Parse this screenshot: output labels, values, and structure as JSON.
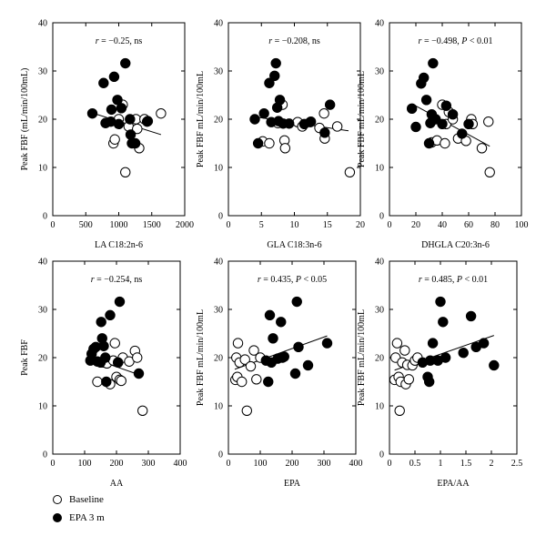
{
  "legend": [
    {
      "label": "Baseline",
      "fill": "#ffffff"
    },
    {
      "label": "EPA 3 m",
      "fill": "#000000"
    }
  ],
  "chart_data": [
    {
      "type": "scatter",
      "annotation": {
        "r": "r = −0.25, ns",
        "p": ""
      },
      "xlabel": "LA C18:2n-6",
      "ylabel": "Peak FBF  (mL/min/100mL)",
      "xlim": [
        0,
        2000
      ],
      "ylim": [
        0,
        40
      ],
      "xticks": [
        0,
        500,
        1000,
        1500,
        2000
      ],
      "yticks": [
        0,
        10,
        20,
        30,
        40
      ],
      "series": [
        {
          "name": "Baseline",
          "points": [
            [
              920,
              15
            ],
            [
              940,
              15.8
            ],
            [
              1000,
              20
            ],
            [
              1060,
              23
            ],
            [
              1100,
              9
            ],
            [
              1150,
              18.5
            ],
            [
              1260,
              20
            ],
            [
              1280,
              18
            ],
            [
              1310,
              14
            ],
            [
              1390,
              20
            ],
            [
              1430,
              19.5
            ],
            [
              1640,
              21.2
            ]
          ]
        },
        {
          "name": "EPA 3 m",
          "points": [
            [
              600,
              21.2
            ],
            [
              770,
              27.5
            ],
            [
              800,
              19.2
            ],
            [
              880,
              19.5
            ],
            [
              890,
              22
            ],
            [
              930,
              28.8
            ],
            [
              980,
              24
            ],
            [
              1000,
              19
            ],
            [
              1040,
              22.3
            ],
            [
              1100,
              31.6
            ],
            [
              1170,
              20
            ],
            [
              1180,
              16.8
            ],
            [
              1200,
              15
            ],
            [
              1250,
              15
            ],
            [
              1440,
              19.6
            ]
          ]
        }
      ],
      "fit": [
        [
          600,
          21.3
        ],
        [
          1640,
          16.8
        ]
      ]
    },
    {
      "type": "scatter",
      "annotation": {
        "r": "r = −0.208, ns",
        "p": ""
      },
      "xlabel": "GLA C18:3n-6",
      "ylabel": "Peak FBF mL/min/100mL",
      "xlim": [
        0,
        20
      ],
      "ylim": [
        0,
        40
      ],
      "xticks": [
        0,
        5,
        10,
        15,
        20
      ],
      "yticks": [
        0,
        10,
        20,
        30,
        40
      ],
      "series": [
        {
          "name": "Baseline",
          "points": [
            [
              5.2,
              15.4
            ],
            [
              6.2,
              15
            ],
            [
              7.5,
              19.2
            ],
            [
              8.2,
              23
            ],
            [
              8.5,
              15.6
            ],
            [
              8.6,
              14
            ],
            [
              10.5,
              19.4
            ],
            [
              11.2,
              18.5
            ],
            [
              12.5,
              19.5
            ],
            [
              13.8,
              18.2
            ],
            [
              14.5,
              21.2
            ],
            [
              14.6,
              16
            ],
            [
              16.5,
              18.5
            ],
            [
              18.4,
              9
            ]
          ]
        },
        {
          "name": "EPA 3 m",
          "points": [
            [
              4,
              20
            ],
            [
              4.5,
              15
            ],
            [
              5.4,
              21.2
            ],
            [
              6.2,
              27.5
            ],
            [
              6.5,
              19.4
            ],
            [
              7,
              29
            ],
            [
              7.2,
              31.6
            ],
            [
              7.4,
              22.4
            ],
            [
              7.6,
              19.6
            ],
            [
              7.8,
              24
            ],
            [
              8.3,
              19.1
            ],
            [
              9.2,
              19.1
            ],
            [
              11.5,
              19
            ],
            [
              12.4,
              19.4
            ],
            [
              14.6,
              17.2
            ],
            [
              15.4,
              23
            ]
          ]
        }
      ],
      "fit": [
        [
          4,
          20.5
        ],
        [
          18.2,
          17.6
        ]
      ]
    },
    {
      "type": "scatter",
      "annotation": {
        "r": "r = −0.498, ",
        "p": "P < 0.01"
      },
      "xlabel": "DHGLA C20:3n-6",
      "ylabel": "Peak FBF mL/min/100mL",
      "xlim": [
        0,
        100
      ],
      "ylim": [
        0,
        40
      ],
      "xticks": [
        0,
        20,
        40,
        60,
        80,
        100
      ],
      "yticks": [
        0,
        10,
        20,
        30,
        40
      ],
      "series": [
        {
          "name": "Baseline",
          "points": [
            [
              32,
              15.2
            ],
            [
              36,
              15.6
            ],
            [
              40,
              23
            ],
            [
              42,
              15
            ],
            [
              43,
              19
            ],
            [
              45,
              21.5
            ],
            [
              48,
              20
            ],
            [
              52,
              16
            ],
            [
              58,
              15.5
            ],
            [
              62,
              20
            ],
            [
              63,
              19
            ],
            [
              70,
              14
            ],
            [
              75,
              19.5
            ],
            [
              76,
              9
            ]
          ]
        },
        {
          "name": "EPA 3 m",
          "points": [
            [
              17,
              22.2
            ],
            [
              20,
              18.4
            ],
            [
              24,
              27.4
            ],
            [
              26,
              28.6
            ],
            [
              28,
              24
            ],
            [
              30,
              15
            ],
            [
              31,
              19.2
            ],
            [
              32,
              21
            ],
            [
              33,
              31.6
            ],
            [
              35,
              20
            ],
            [
              40,
              19
            ],
            [
              43,
              22.8
            ],
            [
              48,
              21
            ],
            [
              55,
              17
            ],
            [
              60,
              19
            ]
          ]
        }
      ],
      "fit": [
        [
          17,
          23.2
        ],
        [
          76,
          14.4
        ]
      ]
    },
    {
      "type": "scatter",
      "annotation": {
        "r": "r = −0.254, ns",
        "p": ""
      },
      "xlabel": "AA",
      "ylabel": "Peak FBF",
      "xlim": [
        0,
        400
      ],
      "ylim": [
        0,
        40
      ],
      "xticks": [
        0,
        100,
        200,
        300,
        400
      ],
      "yticks": [
        0,
        10,
        20,
        30,
        40
      ],
      "series": [
        {
          "name": "Baseline",
          "points": [
            [
              140,
              15
            ],
            [
              160,
              19
            ],
            [
              170,
              18.8
            ],
            [
              180,
              14.5
            ],
            [
              190,
              19.4
            ],
            [
              195,
              23
            ],
            [
              200,
              16
            ],
            [
              205,
              19
            ],
            [
              210,
              15.4
            ],
            [
              215,
              15.2
            ],
            [
              220,
              20
            ],
            [
              240,
              19.2
            ],
            [
              258,
              21.4
            ],
            [
              265,
              20
            ],
            [
              282,
              9
            ]
          ]
        },
        {
          "name": "EPA 3 m",
          "points": [
            [
              118,
              19.4
            ],
            [
              122,
              20.8
            ],
            [
              128,
              21.8
            ],
            [
              135,
              22.2
            ],
            [
              140,
              19.2
            ],
            [
              150,
              19
            ],
            [
              152,
              27.4
            ],
            [
              155,
              24
            ],
            [
              160,
              22.4
            ],
            [
              165,
              20
            ],
            [
              168,
              15
            ],
            [
              180,
              28.8
            ],
            [
              205,
              19
            ],
            [
              210,
              31.6
            ],
            [
              270,
              16.7
            ]
          ]
        }
      ],
      "fit": [
        [
          118,
          20
        ],
        [
          282,
          16.2
        ]
      ]
    },
    {
      "type": "scatter",
      "annotation": {
        "r": "r = 0.435, ",
        "p": "P < 0.05"
      },
      "xlabel": "EPA",
      "ylabel": "Peak FBF mL/min/100mL",
      "xlim": [
        0,
        400
      ],
      "ylim": [
        0,
        40
      ],
      "xticks": [
        0,
        100,
        200,
        300,
        400
      ],
      "yticks": [
        0,
        10,
        20,
        30,
        40
      ],
      "series": [
        {
          "name": "Baseline",
          "points": [
            [
              22,
              15.4
            ],
            [
              25,
              20
            ],
            [
              28,
              16
            ],
            [
              30,
              23
            ],
            [
              35,
              19
            ],
            [
              42,
              15
            ],
            [
              52,
              19.6
            ],
            [
              58,
              9
            ],
            [
              70,
              18.2
            ],
            [
              80,
              21.5
            ],
            [
              88,
              15.5
            ],
            [
              100,
              20
            ]
          ]
        },
        {
          "name": "EPA 3 m",
          "points": [
            [
              118,
              19.4
            ],
            [
              125,
              15
            ],
            [
              130,
              28.8
            ],
            [
              135,
              19
            ],
            [
              140,
              24
            ],
            [
              155,
              19.8
            ],
            [
              165,
              27.4
            ],
            [
              170,
              20
            ],
            [
              175,
              20.2
            ],
            [
              210,
              16.7
            ],
            [
              215,
              31.6
            ],
            [
              220,
              22.2
            ],
            [
              250,
              18.4
            ],
            [
              310,
              23
            ]
          ]
        }
      ],
      "fit": [
        [
          20,
          17.6
        ],
        [
          310,
          24.5
        ]
      ]
    },
    {
      "type": "scatter",
      "annotation": {
        "r": "r = 0.485, ",
        "p": "P < 0.01"
      },
      "xlabel": "EPA/AA",
      "ylabel": "Peak FBF mL/min/100mL",
      "xlim": [
        0,
        2.5
      ],
      "ylim": [
        0,
        40
      ],
      "xticks": [
        0,
        0.5,
        1,
        1.5,
        2,
        2.5
      ],
      "yticks": [
        0,
        10,
        20,
        30,
        40
      ],
      "series": [
        {
          "name": "Baseline",
          "points": [
            [
              0.1,
              15.4
            ],
            [
              0.12,
              20
            ],
            [
              0.15,
              23
            ],
            [
              0.18,
              16
            ],
            [
              0.2,
              9
            ],
            [
              0.22,
              15
            ],
            [
              0.25,
              19
            ],
            [
              0.3,
              21.5
            ],
            [
              0.32,
              14.5
            ],
            [
              0.35,
              18.5
            ],
            [
              0.38,
              15.5
            ],
            [
              0.45,
              18.4
            ],
            [
              0.5,
              19.4
            ],
            [
              0.55,
              20
            ]
          ]
        },
        {
          "name": "EPA 3 m",
          "points": [
            [
              0.65,
              19
            ],
            [
              0.75,
              16
            ],
            [
              0.78,
              15
            ],
            [
              0.8,
              19.4
            ],
            [
              0.85,
              23
            ],
            [
              0.95,
              19.4
            ],
            [
              1,
              31.6
            ],
            [
              1.05,
              27.4
            ],
            [
              1.1,
              20
            ],
            [
              1.45,
              21
            ],
            [
              1.6,
              28.6
            ],
            [
              1.7,
              22.2
            ],
            [
              1.85,
              23
            ],
            [
              2.05,
              18.4
            ]
          ]
        }
      ],
      "fit": [
        [
          0.1,
          17.4
        ],
        [
          2.05,
          24.6
        ]
      ]
    }
  ]
}
